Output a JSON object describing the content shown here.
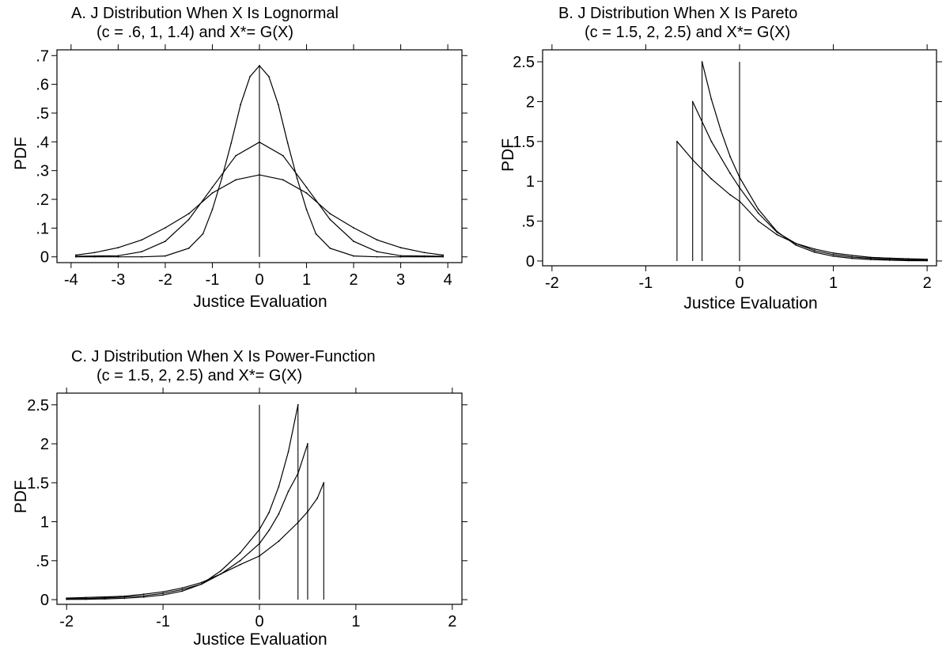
{
  "chart_data": [
    {
      "type": "line",
      "title": "A.  J Distribution When X Is Lognormal",
      "subtitle": "(c = .6, 1, 1.4) and X*= G(X)",
      "xlabel": "Justice Evaluation",
      "ylabel": "PDF",
      "xlim": [
        -4.3,
        4.3
      ],
      "ylim": [
        -0.02,
        0.72
      ],
      "xticks": [
        -4,
        -3,
        -2,
        -1,
        0,
        1,
        2,
        3,
        4
      ],
      "xtick_labels": [
        "-4",
        "-3",
        "-2",
        "-1",
        "0",
        "1",
        "2",
        "3",
        "4"
      ],
      "yticks": [
        0,
        0.1,
        0.2,
        0.3,
        0.4,
        0.5,
        0.6,
        0.7
      ],
      "ytick_labels": [
        "0",
        ".1",
        ".2",
        ".3",
        ".4",
        ".5",
        ".6",
        ".7"
      ],
      "grid": false,
      "vlines": [
        {
          "x": 0,
          "y0": 0,
          "y1": 0.665
        }
      ],
      "series": [
        {
          "x": [
            -3.9,
            -3.5,
            -3,
            -2.5,
            -2,
            -1.5,
            -1.2,
            -1,
            -0.8,
            -0.6,
            -0.4,
            -0.2,
            0,
            0.2,
            0.4,
            0.6,
            0.8,
            1,
            1.2,
            1.5,
            2,
            2.5,
            3,
            3.5,
            3.9
          ],
          "values": [
            0,
            0,
            0,
            0,
            0.003,
            0.03,
            0.08,
            0.165,
            0.273,
            0.396,
            0.53,
            0.627,
            0.665,
            0.627,
            0.53,
            0.396,
            0.273,
            0.165,
            0.08,
            0.03,
            0.003,
            0,
            0,
            0,
            0
          ]
        },
        {
          "x": [
            -3.9,
            -3.5,
            -3,
            -2.5,
            -2,
            -1.5,
            -1,
            -0.5,
            0,
            0.5,
            1,
            1.5,
            2,
            2.5,
            3,
            3.5,
            3.9
          ],
          "values": [
            0.002,
            0.003,
            0.004,
            0.018,
            0.054,
            0.13,
            0.242,
            0.352,
            0.399,
            0.352,
            0.242,
            0.13,
            0.054,
            0.018,
            0.004,
            0.003,
            0.002
          ]
        },
        {
          "x": [
            -3.9,
            -3.5,
            -3,
            -2.5,
            -2,
            -1.5,
            -1,
            -0.5,
            0,
            0.5,
            1,
            1.5,
            2,
            2.5,
            3,
            3.5,
            3.9
          ],
          "values": [
            0.006,
            0.015,
            0.032,
            0.059,
            0.101,
            0.15,
            0.222,
            0.268,
            0.285,
            0.268,
            0.222,
            0.15,
            0.101,
            0.059,
            0.032,
            0.015,
            0.006
          ]
        }
      ]
    },
    {
      "type": "line",
      "title": "B.  J Distribution When X Is Pareto",
      "subtitle": "(c = 1.5, 2, 2.5) and X*= G(X)",
      "xlabel": "Justice Evaluation",
      "ylabel": "PDF",
      "xlim": [
        -2.1,
        2.1
      ],
      "ylim": [
        -0.06,
        2.65
      ],
      "xticks": [
        -2,
        -1,
        0,
        1,
        2
      ],
      "xtick_labels": [
        "-2",
        "-1",
        "0",
        "1",
        "2"
      ],
      "yticks": [
        0,
        0.5,
        1,
        1.5,
        2,
        2.5
      ],
      "ytick_labels": [
        "0",
        ".5",
        "1",
        "1.5",
        "2",
        "2.5"
      ],
      "grid": false,
      "vlines": [
        {
          "x": 0,
          "y0": 0,
          "y1": 2.5
        },
        {
          "x": -0.667,
          "y0": 0,
          "y1": 1.5
        },
        {
          "x": -0.5,
          "y0": 0,
          "y1": 2
        },
        {
          "x": -0.4,
          "y0": 0,
          "y1": 2.5
        }
      ],
      "series": [
        {
          "x": [
            -0.667,
            -0.5,
            -0.3,
            -0.1,
            0,
            0.2,
            0.4,
            0.6,
            0.8,
            1,
            1.2,
            1.4,
            1.6,
            1.8,
            2
          ],
          "values": [
            1.5,
            1.27,
            1.03,
            0.83,
            0.75,
            0.5,
            0.33,
            0.22,
            0.15,
            0.1,
            0.07,
            0.045,
            0.035,
            0.028,
            0.022
          ]
        },
        {
          "x": [
            -0.5,
            -0.3,
            -0.1,
            0,
            0.2,
            0.4,
            0.6,
            0.8,
            1,
            1.2,
            1.4,
            1.6,
            1.8,
            2
          ],
          "values": [
            2,
            1.5,
            1.1,
            0.92,
            0.6,
            0.36,
            0.22,
            0.13,
            0.08,
            0.05,
            0.033,
            0.022,
            0.015,
            0.01
          ]
        },
        {
          "x": [
            -0.4,
            -0.3,
            -0.2,
            -0.1,
            0,
            0.2,
            0.4,
            0.6,
            0.8,
            1,
            1.2,
            1.4,
            1.6,
            1.8,
            2
          ],
          "values": [
            2.5,
            2.03,
            1.64,
            1.31,
            1.05,
            0.65,
            0.37,
            0.2,
            0.11,
            0.06,
            0.033,
            0.018,
            0.01,
            0.005,
            0.003
          ]
        }
      ]
    },
    {
      "type": "line",
      "title": "C.  J Distribution When X Is Power-Function",
      "subtitle": "(c = 1.5, 2, 2.5) and X*= G(X)",
      "xlabel": "Justice Evaluation",
      "ylabel": "PDF",
      "xlim": [
        -2.1,
        2.1
      ],
      "ylim": [
        -0.06,
        2.65
      ],
      "xticks": [
        -2,
        -1,
        0,
        1,
        2
      ],
      "xtick_labels": [
        "-2",
        "-1",
        "0",
        "1",
        "2"
      ],
      "yticks": [
        0,
        0.5,
        1,
        1.5,
        2,
        2.5
      ],
      "ytick_labels": [
        "0",
        ".5",
        "1",
        "1.5",
        "2",
        "2.5"
      ],
      "grid": false,
      "vlines": [
        {
          "x": 0,
          "y0": 0,
          "y1": 2.5
        },
        {
          "x": 0.4,
          "y0": 0,
          "y1": 2.5
        },
        {
          "x": 0.5,
          "y0": 0,
          "y1": 2
        },
        {
          "x": 0.667,
          "y0": 0,
          "y1": 1.5
        }
      ],
      "series": [
        {
          "x": [
            -2,
            -1.8,
            -1.6,
            -1.4,
            -1.2,
            -1,
            -0.8,
            -0.6,
            -0.4,
            -0.2,
            0,
            0.2,
            0.4,
            0.5,
            0.6,
            0.667
          ],
          "values": [
            0.02,
            0.028,
            0.035,
            0.045,
            0.07,
            0.1,
            0.15,
            0.22,
            0.33,
            0.45,
            0.56,
            0.75,
            0.99,
            1.13,
            1.3,
            1.5
          ]
        },
        {
          "x": [
            -2,
            -1.8,
            -1.6,
            -1.4,
            -1.2,
            -1,
            -0.8,
            -0.6,
            -0.4,
            -0.2,
            0,
            0.1,
            0.2,
            0.3,
            0.4,
            0.5
          ],
          "values": [
            0.01,
            0.015,
            0.022,
            0.033,
            0.05,
            0.08,
            0.13,
            0.2,
            0.33,
            0.5,
            0.72,
            0.89,
            1.1,
            1.39,
            1.62,
            2
          ]
        },
        {
          "x": [
            -2,
            -1.8,
            -1.6,
            -1.4,
            -1.2,
            -1,
            -0.8,
            -0.6,
            -0.4,
            -0.2,
            0,
            0.1,
            0.2,
            0.3,
            0.4
          ],
          "values": [
            0.003,
            0.005,
            0.01,
            0.018,
            0.033,
            0.06,
            0.11,
            0.2,
            0.37,
            0.6,
            0.9,
            1.12,
            1.45,
            1.9,
            2.5
          ]
        }
      ]
    }
  ]
}
